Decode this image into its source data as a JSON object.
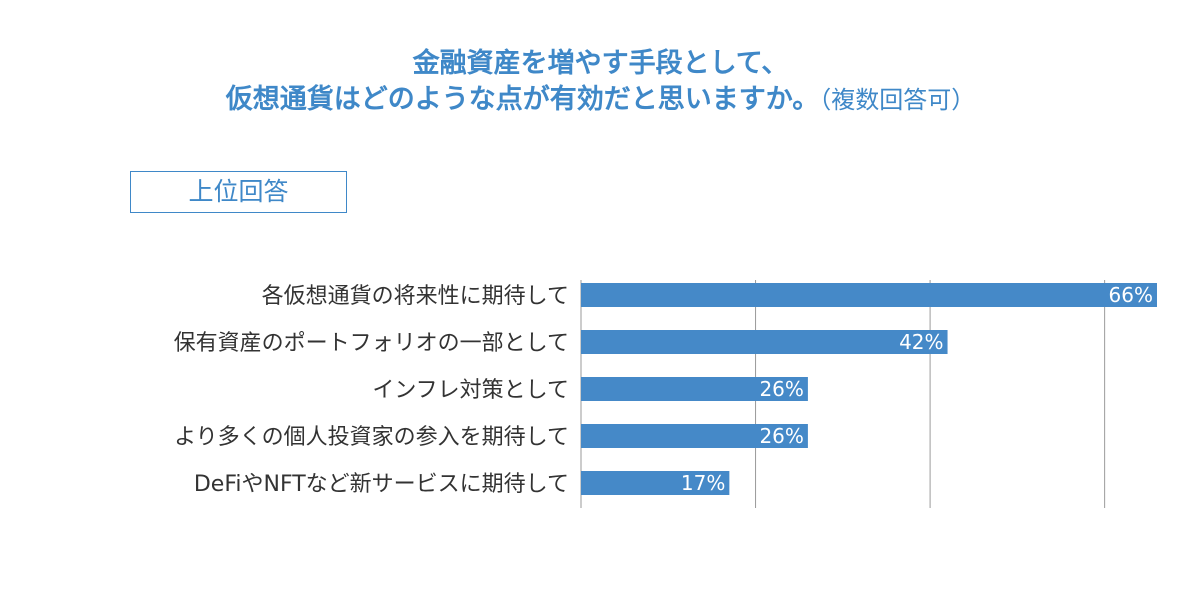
{
  "header": {
    "title_line1": "金融資産を増やす手段として、",
    "title_line2_main": "仮想通貨はどのような点が有効だと思いますか。",
    "title_line2_note": "（複数回答可）"
  },
  "badge": {
    "label": "上位回答"
  },
  "chart_data": {
    "type": "bar",
    "orientation": "horizontal",
    "categories": [
      "各仮想通貨の将来性に期待して",
      "保有資産のポートフォリオの一部として",
      "インフレ対策として",
      "より多くの個人投資家の参入を期待して",
      "DeFiやNFTなど新サービスに期待して"
    ],
    "values": [
      66,
      42,
      26,
      26,
      17
    ],
    "value_labels": [
      "66%",
      "42%",
      "26%",
      "26%",
      "17%"
    ],
    "unit": "%",
    "xlim": [
      0,
      66
    ],
    "gridlines": [
      20,
      40,
      60
    ],
    "bar_color": "#4589c8",
    "grid_color": "#9a9a9a"
  }
}
